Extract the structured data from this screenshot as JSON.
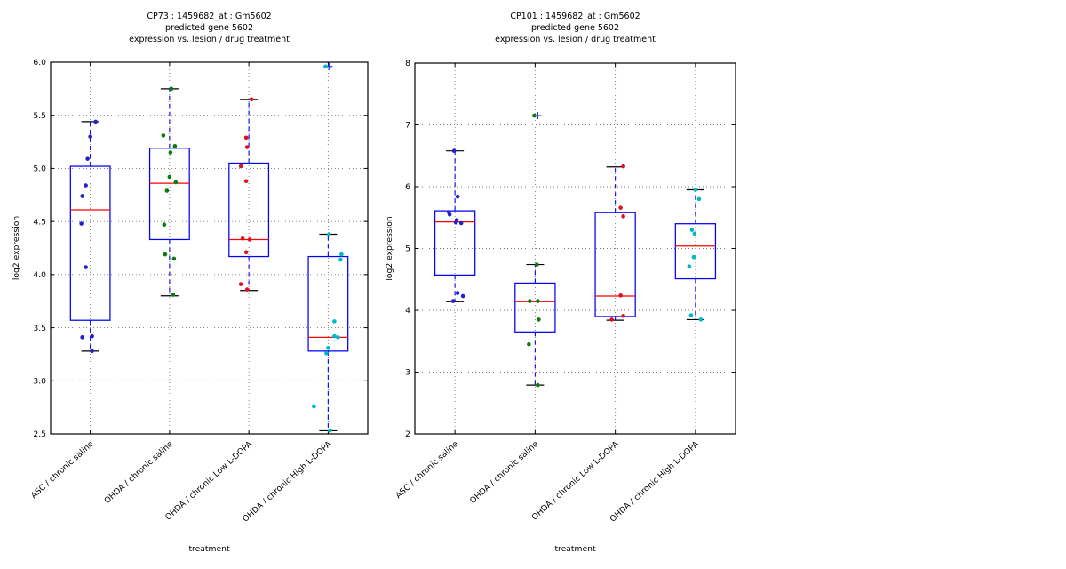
{
  "figure": {
    "background": "#ffffff",
    "box_color": "#0000ff",
    "median_color": "#ff0000",
    "whisker_color": "#0000ff",
    "cap_color": "#000000",
    "grid_color": "#777777",
    "axis_color": "#000000",
    "outlier_marker_color": "#3333ff"
  },
  "chart_data": [
    {
      "type": "boxplot",
      "title_lines": [
        "CP73 : 1459682_at : Gm5602",
        "predicted gene 5602",
        "expression vs. lesion / drug treatment"
      ],
      "xlabel": "treatment",
      "ylabel": "log2 expression",
      "ylim": [
        2.5,
        6.0
      ],
      "yticks": [
        [
          2.5,
          "2.5"
        ],
        [
          3.0,
          "3.0"
        ],
        [
          3.5,
          "3.5"
        ],
        [
          4.0,
          "4.0"
        ],
        [
          4.5,
          "4.5"
        ],
        [
          5.0,
          "5.0"
        ],
        [
          5.5,
          "5.5"
        ],
        [
          6.0,
          "6.0"
        ]
      ],
      "grid": true,
      "legend": "none",
      "categories": [
        "ASC / chronic saline",
        "OHDA / chronic saline",
        "OHDA / chronic Low L-DOPA",
        "OHDA / chronic High L-DOPA"
      ],
      "groups": [
        {
          "label": "ASC / chronic saline",
          "point_color": "#2222cc",
          "whisker_low": 3.28,
          "q1": 3.57,
          "median": 4.61,
          "q3": 5.02,
          "whisker_high": 5.44,
          "points": [
            [
              5.44,
              6
            ],
            [
              5.3,
              0
            ],
            [
              5.09,
              -3
            ],
            [
              4.84,
              -5
            ],
            [
              4.74,
              -9
            ],
            [
              4.48,
              -10
            ],
            [
              4.07,
              -5
            ],
            [
              3.42,
              2
            ],
            [
              3.41,
              -9
            ],
            [
              3.28,
              2
            ]
          ],
          "outliers": []
        },
        {
          "label": "OHDA / chronic saline",
          "point_color": "#0a7a0a",
          "whisker_low": 3.8,
          "q1": 4.33,
          "median": 4.86,
          "q3": 5.19,
          "whisker_high": 5.75,
          "points": [
            [
              5.75,
              2
            ],
            [
              5.31,
              -7
            ],
            [
              5.21,
              6
            ],
            [
              5.15,
              1
            ],
            [
              4.92,
              0
            ],
            [
              4.87,
              7
            ],
            [
              4.79,
              -3
            ],
            [
              4.47,
              -6
            ],
            [
              4.19,
              -5
            ],
            [
              4.15,
              5
            ],
            [
              3.81,
              4
            ]
          ],
          "outliers": []
        },
        {
          "label": "OHDA / chronic Low L-DOPA",
          "point_color": "#dd1122",
          "whisker_low": 3.85,
          "q1": 4.17,
          "median": 4.33,
          "q3": 5.05,
          "whisker_high": 5.65,
          "points": [
            [
              5.65,
              3
            ],
            [
              5.29,
              -3
            ],
            [
              5.2,
              -2
            ],
            [
              5.02,
              -9
            ],
            [
              4.88,
              -3
            ],
            [
              4.34,
              -7
            ],
            [
              4.33,
              1
            ],
            [
              4.21,
              -3
            ],
            [
              3.91,
              -9
            ],
            [
              3.86,
              -2
            ]
          ],
          "outliers": []
        },
        {
          "label": "OHDA / chronic High L-DOPA",
          "point_color": "#00b8c8",
          "whisker_low": 2.53,
          "q1": 3.28,
          "median": 3.41,
          "q3": 4.17,
          "whisker_high": 4.38,
          "points": [
            [
              4.38,
              1
            ],
            [
              4.19,
              15
            ],
            [
              4.14,
              14
            ],
            [
              3.56,
              7
            ],
            [
              3.42,
              7
            ],
            [
              3.41,
              11
            ],
            [
              3.31,
              0
            ],
            [
              3.26,
              -2
            ],
            [
              2.76,
              -16
            ],
            [
              2.53,
              2
            ]
          ],
          "outliers": [
            [
              5.96,
              -3
            ]
          ]
        }
      ]
    },
    {
      "type": "boxplot",
      "title_lines": [
        "CP101 : 1459682_at : Gm5602",
        "predicted gene 5602",
        "expression vs. lesion / drug treatment"
      ],
      "xlabel": "treatment",
      "ylabel": "log2 expression",
      "ylim": [
        2,
        8
      ],
      "yticks": [
        [
          2,
          "2"
        ],
        [
          3,
          "3"
        ],
        [
          4,
          "4"
        ],
        [
          5,
          "5"
        ],
        [
          6,
          "6"
        ],
        [
          7,
          "7"
        ],
        [
          8,
          "8"
        ]
      ],
      "grid": true,
      "legend": "none",
      "categories": [
        "ASC / chronic saline",
        "OHDA / chronic saline",
        "OHDA / chronic Low L-DOPA",
        "OHDA / chronic High L-DOPA"
      ],
      "groups": [
        {
          "label": "ASC / chronic saline",
          "point_color": "#2222cc",
          "whisker_low": 4.14,
          "q1": 4.57,
          "median": 5.43,
          "q3": 5.61,
          "whisker_high": 6.58,
          "points": [
            [
              6.58,
              -1
            ],
            [
              5.84,
              3
            ],
            [
              5.59,
              -7
            ],
            [
              5.55,
              -6
            ],
            [
              5.46,
              2
            ],
            [
              5.42,
              1
            ],
            [
              5.41,
              7
            ],
            [
              4.28,
              3
            ],
            [
              4.23,
              9
            ],
            [
              4.15,
              -2
            ]
          ],
          "outliers": []
        },
        {
          "label": "OHDA / chronic saline",
          "point_color": "#0a7a0a",
          "whisker_low": 2.79,
          "q1": 3.65,
          "median": 4.14,
          "q3": 4.44,
          "whisker_high": 4.74,
          "points": [
            [
              4.74,
              2
            ],
            [
              4.15,
              -6
            ],
            [
              4.15,
              3
            ],
            [
              3.85,
              4
            ],
            [
              3.45,
              -7
            ],
            [
              2.79,
              3
            ]
          ],
          "outliers": [
            [
              7.15,
              -1
            ]
          ]
        },
        {
          "label": "OHDA / chronic Low L-DOPA",
          "point_color": "#dd1122",
          "whisker_low": 3.84,
          "q1": 3.9,
          "median": 4.23,
          "q3": 5.58,
          "whisker_high": 6.32,
          "points": [
            [
              6.33,
              9
            ],
            [
              5.66,
              6
            ],
            [
              5.52,
              9
            ],
            [
              4.24,
              6
            ],
            [
              3.91,
              9
            ],
            [
              3.85,
              -4
            ]
          ],
          "outliers": []
        },
        {
          "label": "OHDA / chronic High L-DOPA",
          "point_color": "#00b8c8",
          "whisker_low": 3.85,
          "q1": 4.51,
          "median": 5.04,
          "q3": 5.4,
          "whisker_high": 5.95,
          "points": [
            [
              5.95,
              0
            ],
            [
              5.8,
              4
            ],
            [
              5.3,
              -4
            ],
            [
              5.24,
              -1
            ],
            [
              4.86,
              -2
            ],
            [
              4.71,
              -7
            ],
            [
              3.92,
              -5
            ],
            [
              3.85,
              6
            ]
          ],
          "outliers": []
        }
      ]
    }
  ]
}
